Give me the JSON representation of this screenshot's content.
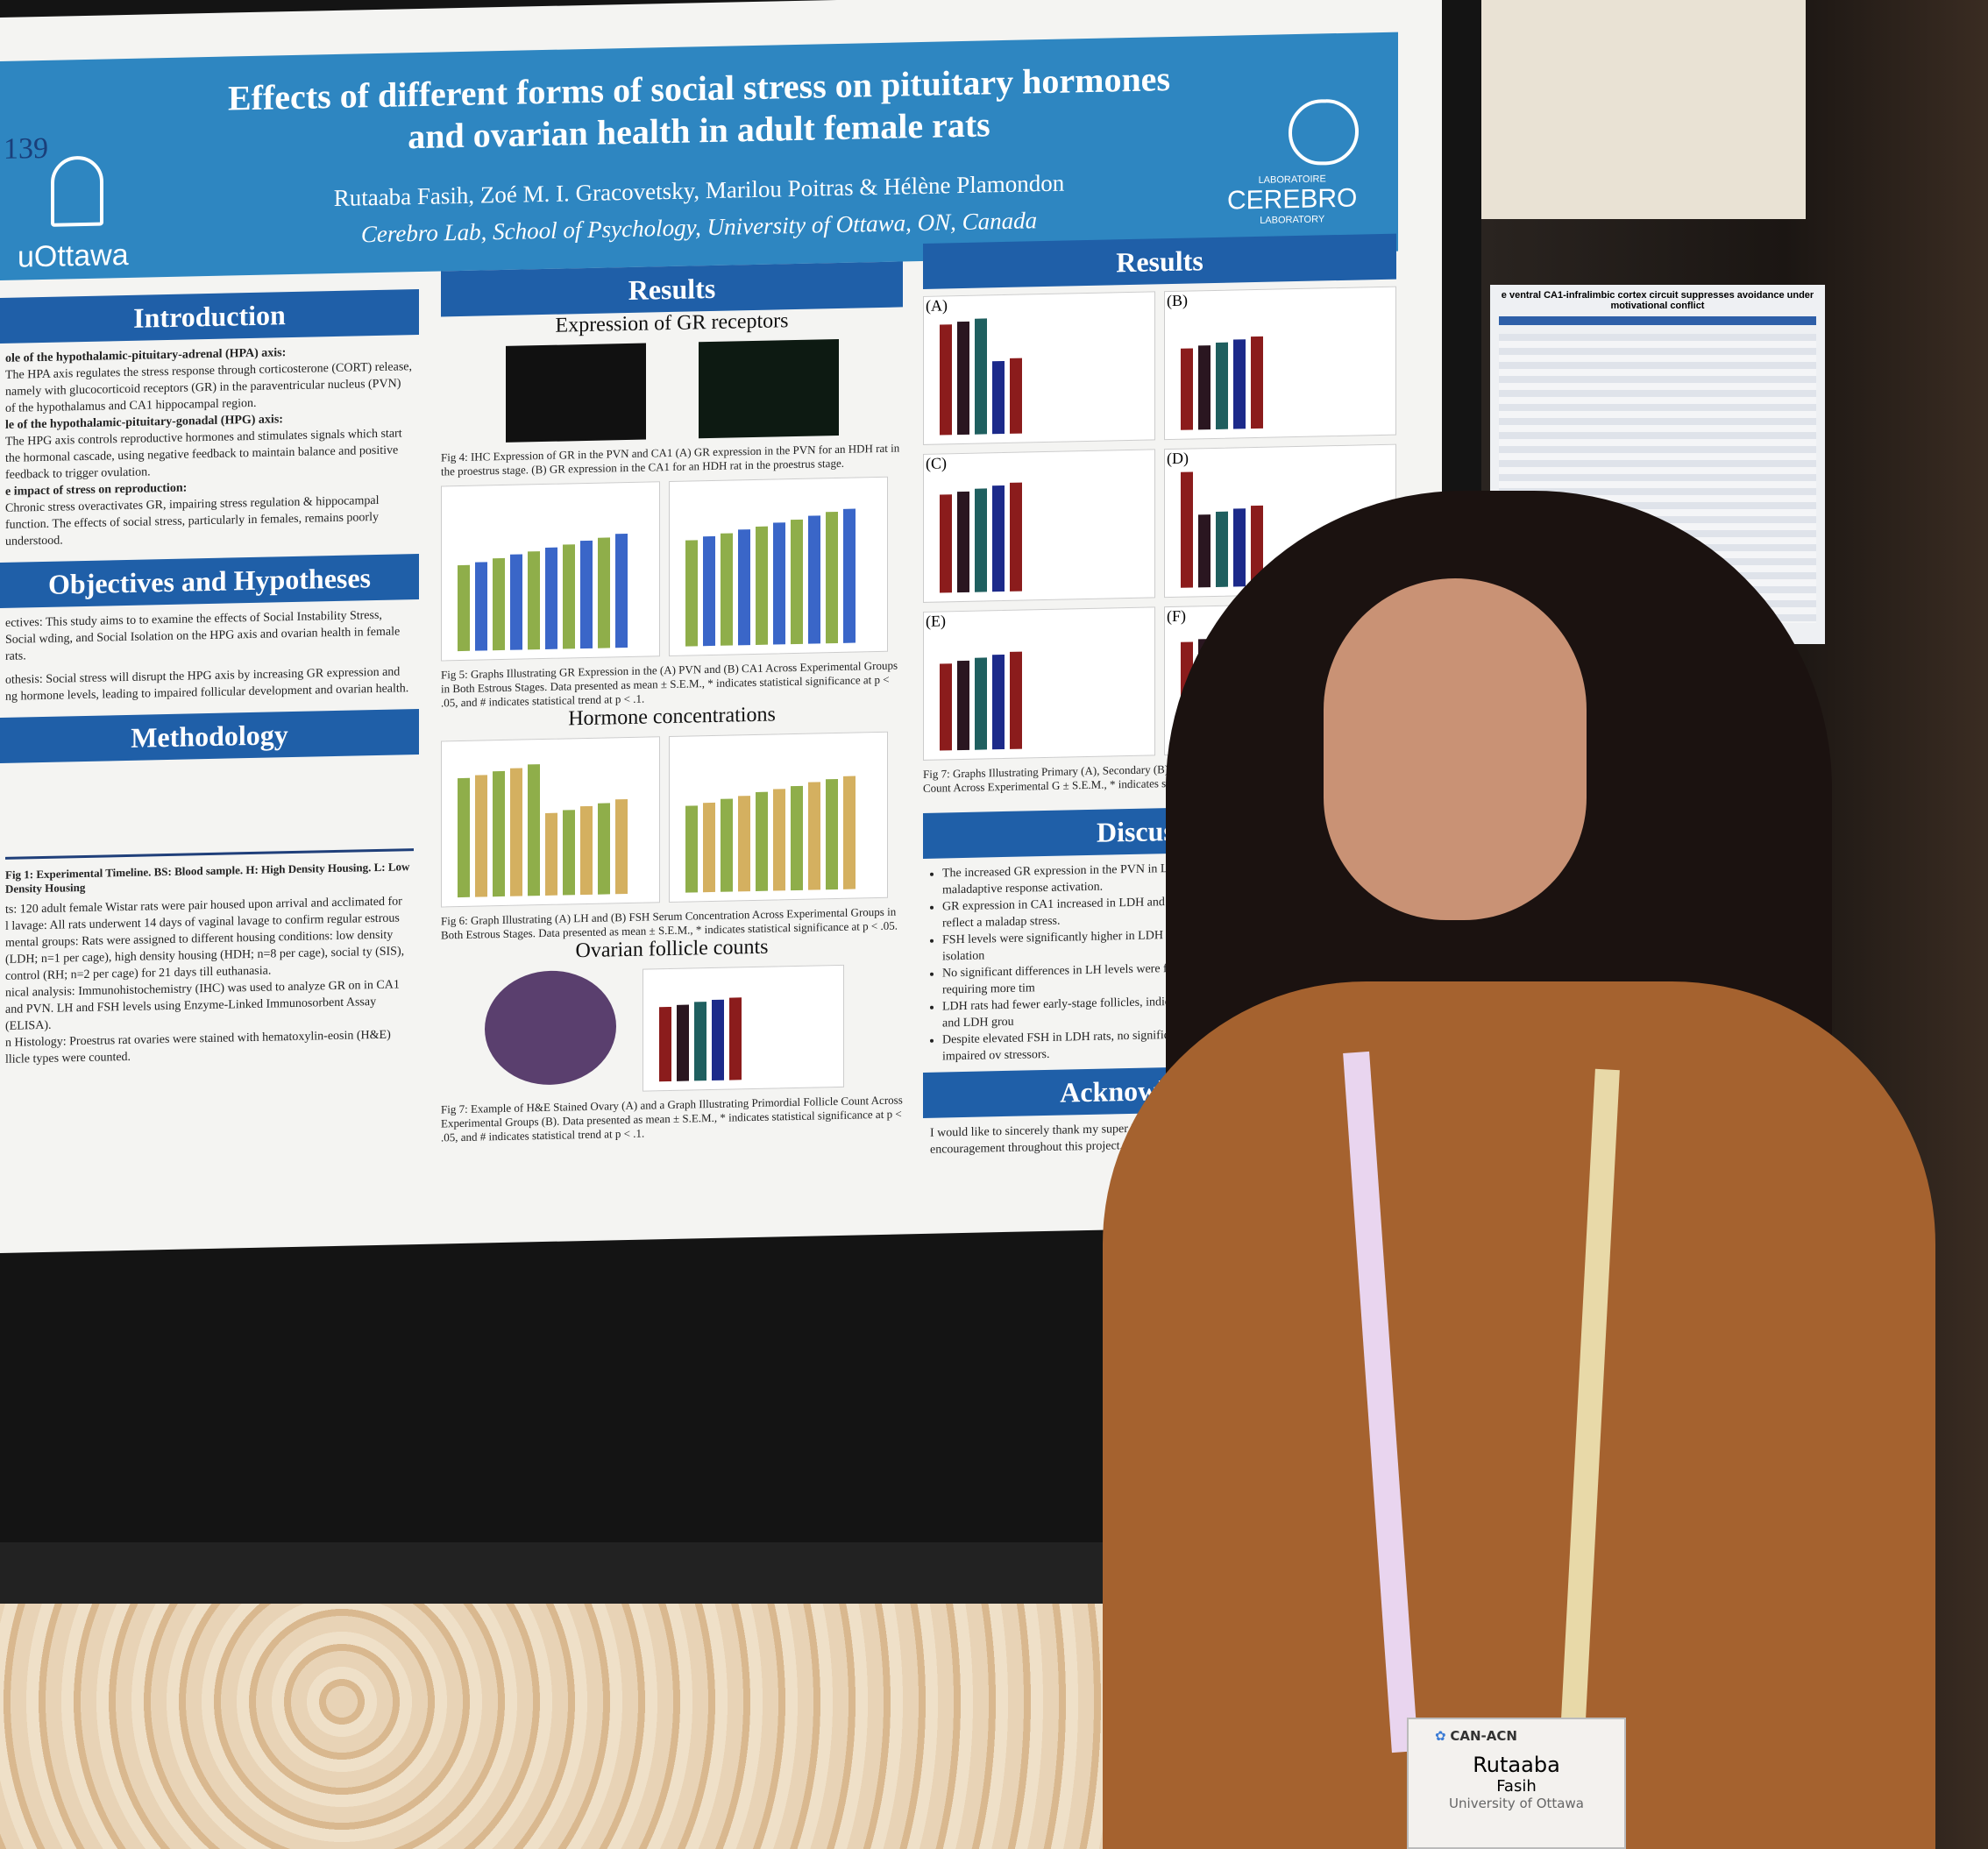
{
  "poster": {
    "number": "139",
    "title": "Effects of different forms of social stress on pituitary hormones and ovarian health in adult female rats",
    "authors": "Rutaaba Fasih, Zoé M. I. Gracovetsky, Marilou Poitras & Hélène Plamondon",
    "affiliation": "Cerebro Lab, School of Psychology, University of Ottawa, ON, Canada",
    "left_logo": "uOttawa",
    "right_logo": {
      "top": "LABORATOIRE",
      "name": "CEREBRO",
      "bottom": "LABORATORY"
    },
    "sections": {
      "introduction": "Introduction",
      "objectives": "Objectives and Hypotheses",
      "methodology": "Methodology",
      "results": "Results",
      "discussion": "Discussion",
      "acknowledgments": "Acknowledgmen"
    },
    "intro_text": [
      "ole of the hypothalamic-pituitary-adrenal (HPA) axis:",
      "The HPA axis regulates the stress response through corticosterone (CORT) release, namely with glucocorticoid receptors (GR) in the paraventricular nucleus (PVN) of the hypothalamus and CA1 hippocampal region.",
      "le of the hypothalamic-pituitary-gonadal (HPG) axis:",
      "The HPG axis controls reproductive hormones and stimulates signals which start the hormonal cascade, using negative feedback to maintain balance and positive feedback to trigger ovulation.",
      "e impact of stress on reproduction:",
      "Chronic stress overactivates GR, impairing stress regulation & hippocampal function. The effects of social stress, particularly in females, remains poorly understood."
    ],
    "objectives_text": [
      "ectives: This study aims to to examine the effects of Social Instability Stress, Social wding, and Social Isolation on the HPG axis and ovarian health in female rats.",
      "othesis: Social stress will disrupt the HPG axis by increasing GR expression and ng hormone levels, leading to impaired follicular development and ovarian health."
    ],
    "method_caption": "Fig 1: Experimental Timeline. BS: Blood sample. H: High Density Housing. L: Low Density Housing",
    "method_text": [
      "ts: 120 adult female Wistar rats were pair housed upon arrival and acclimated for",
      "l lavage: All rats underwent 14 days of vaginal lavage to confirm regular estrous",
      "mental groups: Rats were assigned to different housing conditions: low density (LDH; n=1 per cage), high density housing (HDH; n=8 per cage), social ty (SIS), control (RH; n=2 per cage) for 21 days till euthanasia.",
      "nical analysis: Immunohistochemistry (IHC) was used to analyze GR on in CA1 and PVN. LH and FSH levels using Enzyme-Linked Immunosorbent Assay (ELISA).",
      "n Histology: Proestrus rat ovaries were stained with hematoxylin-eosin (H&E) llicle types were counted."
    ],
    "results_mid": {
      "gr_title": "Expression of GR receptors",
      "fig4": "Fig 4: IHC Expression of GR in the PVN and CA1 (A) GR expression in the PVN for an HDH rat in the proestrus stage. (B) GR expression in the CA1 for an HDH rat in the proestrus stage.",
      "fig5": "Fig 5: Graphs Illustrating GR Expression in the (A) PVN and (B) CA1 Across Experimental Groups in Both Estrous Stages. Data presented as mean ± S.E.M., * indicates statistical significance at p < .05, and # indicates statistical trend at p < .1.",
      "hormone_title": "Hormone concentrations",
      "fig6": "Fig 6: Graph Illustrating (A) LH and (B) FSH Serum Concentration Across Experimental Groups in Both Estrous Stages. Data presented as mean ± S.E.M., * indicates statistical significance at p < .05.",
      "ovary_title": "Ovarian follicle counts",
      "fig7": "Fig 7: Example of H&E Stained Ovary (A) and a Graph Illustrating Primordial Follicle Count Across Experimental Groups (B). Data presented as mean ± S.E.M., * indicates statistical significance at p < .05, and # indicates statistical trend at p < .1."
    },
    "results_right_caption": "Fig 7: Graphs Illustrating Primary (A), Secondary (B), Early Antr Luteum (E) and Atretic (F) Follicle Count Across Experimental G ± S.E.M., * indicates statistical significance at p < .05, and # indicat",
    "panel_labels": [
      "(A)",
      "(B)",
      "(C)",
      "(D)",
      "(E)",
      "(F)"
    ],
    "discussion": [
      "The increased GR expression in the PVN in LDH rats excess CORT but may be a maladaptive response activation.",
      "GR expression in CA1 increased in LDH and HD axis and retain memory but may reflect a maladap stress.",
      "FSH levels were significantly higher in LDH rat to ovarian dysfunction from prolonged isolation",
      "No significant differences in LH levels were foun LH or a missed proestrus surge, requiring more tim",
      "LDH rats had fewer early-stage follicles, indicati ovarian reserve, particularly in SIS and LDH grou",
      "Despite elevated FSH in LDH rats, no significan preovulatory follicles, likely due to impaired ov stressors."
    ],
    "acknowledgments": "I would like to sincerely thank my super Hélène Plamondon and Jacky Liang for encouragement throughout this project."
  },
  "colors": {
    "header_blue": "#2e86c1",
    "section_blue": "#1f5fa8",
    "bar_red": "#8b1c1c",
    "bar_dark": "#2a1620",
    "bar_teal": "#1f5f5f",
    "bar_navy": "#1c2a8a",
    "bar_green": "#8fae4a",
    "bar_blue": "#3a66c8",
    "bar_tan": "#d4b060"
  },
  "neighbor_poster": {
    "title": "e ventral CA1-infralimbic cortex circuit suppresses avoidance under motivational conflict"
  },
  "badge": {
    "org": "CAN-ACN",
    "first_name": "Rutaaba",
    "last_name": "Fasih",
    "institution": "University of Ottawa"
  }
}
